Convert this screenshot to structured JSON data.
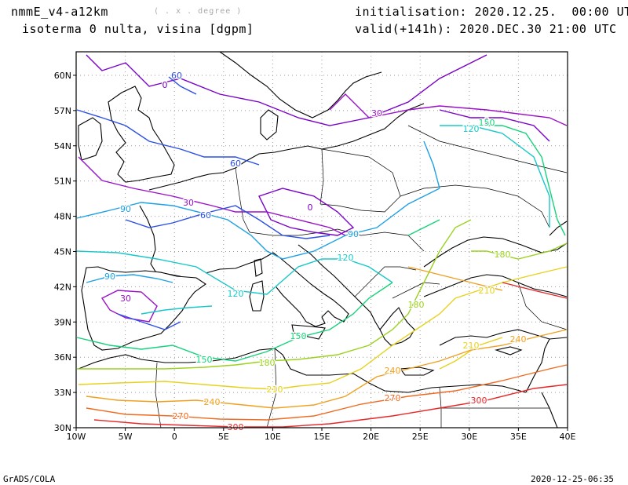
{
  "header": {
    "model": "nmmE_v4-a12km",
    "units_note": "( . x . degree )",
    "field": "isoterma 0 nulta, visina [dgpm]",
    "init": "initialisation: 2020.12.25.  00:00 UTC",
    "valid": "valid(+141h): 2020.DEC.30 21:00 UTC"
  },
  "footer": {
    "left": "GrADS/COLA",
    "right": "2020-12-25-06:35"
  },
  "map": {
    "lon_range": [
      -10,
      40
    ],
    "lat_range": [
      30,
      62
    ],
    "x_ticks": [
      "10W",
      "5W",
      "0",
      "5E",
      "10E",
      "15E",
      "20E",
      "25E",
      "30E",
      "35E",
      "40E"
    ],
    "y_ticks": [
      "60N",
      "57N",
      "54N",
      "51N",
      "48N",
      "45N",
      "42N",
      "39N",
      "36N",
      "33N",
      "30N"
    ]
  },
  "contours": [
    {
      "level": "0",
      "color": "#7a00c8"
    },
    {
      "level": "30",
      "color": "#9b10c8"
    },
    {
      "level": "60",
      "color": "#2a4ee8"
    },
    {
      "level": "90",
      "color": "#1ea0e6"
    },
    {
      "level": "120",
      "color": "#18c8c8"
    },
    {
      "level": "150",
      "color": "#16d27a"
    },
    {
      "level": "180",
      "color": "#9ad21e"
    },
    {
      "level": "210",
      "color": "#e6d21e"
    },
    {
      "level": "240",
      "color": "#f0a020"
    },
    {
      "level": "270",
      "color": "#f06a20"
    },
    {
      "level": "300",
      "color": "#e62828"
    }
  ]
}
